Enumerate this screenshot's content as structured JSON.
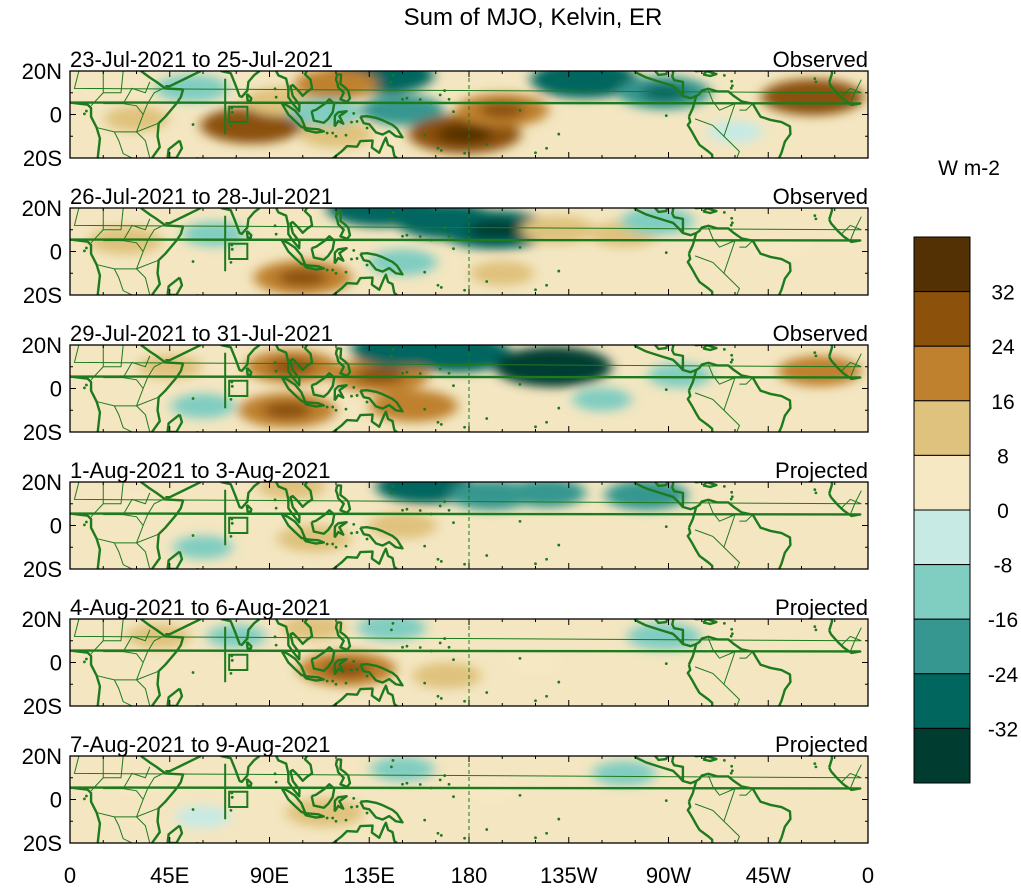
{
  "chart_data": {
    "type": "heatmap",
    "title": "Sum of MJO, Kelvin, ER",
    "colorbar": {
      "unit": "W m-2",
      "tick_labels": [
        "32",
        "24",
        "16",
        "8",
        "0",
        "-8",
        "-16",
        "-24",
        "-32"
      ],
      "levels": [
        40,
        32,
        24,
        16,
        8,
        0,
        -8,
        -16,
        -24,
        -32,
        -40
      ],
      "colors": [
        "#543005",
        "#8c510a",
        "#bf812d",
        "#dfc27d",
        "#f6e8c3",
        "#c7eae5",
        "#80cdc1",
        "#35978f",
        "#01665e",
        "#003c30"
      ]
    },
    "x_axis": {
      "tick_labels": [
        "0",
        "45E",
        "90E",
        "135E",
        "180",
        "135W",
        "90W",
        "45W",
        "0"
      ],
      "range_degrees_east": [
        0,
        360
      ]
    },
    "y_axis": {
      "tick_labels": [
        "20N",
        "0",
        "20S"
      ],
      "range_degrees": [
        -20,
        20
      ]
    },
    "panels": [
      {
        "period": "23-Jul-2021 to 25-Jul-2021",
        "status": "Observed",
        "anomalies": [
          {
            "lon": 82,
            "lat": -5,
            "value": 26
          },
          {
            "lon": 96,
            "lat": 6,
            "value": 16
          },
          {
            "lon": 120,
            "lat": -9,
            "value": 14
          },
          {
            "lon": 140,
            "lat": 18,
            "value": -28
          },
          {
            "lon": 120,
            "lat": 14,
            "value": 18
          },
          {
            "lon": 115,
            "lat": 1,
            "value": -14
          },
          {
            "lon": 150,
            "lat": 2,
            "value": -18
          },
          {
            "lon": 178,
            "lat": -9,
            "value": 30
          },
          {
            "lon": 195,
            "lat": 2,
            "value": 22
          },
          {
            "lon": 232,
            "lat": 16,
            "value": -28
          },
          {
            "lon": 268,
            "lat": 10,
            "value": -22
          },
          {
            "lon": 335,
            "lat": 8,
            "value": 26
          },
          {
            "lon": 30,
            "lat": -2,
            "value": 10
          },
          {
            "lon": 55,
            "lat": 12,
            "value": -14
          },
          {
            "lon": 300,
            "lat": -8,
            "value": -6
          }
        ]
      },
      {
        "period": "26-Jul-2021 to 28-Jul-2021",
        "status": "Observed",
        "anomalies": [
          {
            "lon": 105,
            "lat": -12,
            "value": 24
          },
          {
            "lon": 140,
            "lat": 20,
            "value": -28
          },
          {
            "lon": 170,
            "lat": 14,
            "value": -26
          },
          {
            "lon": 192,
            "lat": 10,
            "value": -30
          },
          {
            "lon": 220,
            "lat": 10,
            "value": 14
          },
          {
            "lon": 250,
            "lat": 8,
            "value": 12
          },
          {
            "lon": 265,
            "lat": 14,
            "value": -14
          },
          {
            "lon": 65,
            "lat": 8,
            "value": -10
          },
          {
            "lon": 25,
            "lat": 5,
            "value": 14
          },
          {
            "lon": 150,
            "lat": -5,
            "value": -12
          },
          {
            "lon": 195,
            "lat": -10,
            "value": 10
          },
          {
            "lon": 320,
            "lat": 2,
            "value": 8
          }
        ]
      },
      {
        "period": "29-Jul-2021 to 31-Jul-2021",
        "status": "Observed",
        "anomalies": [
          {
            "lon": 100,
            "lat": 10,
            "value": 22
          },
          {
            "lon": 98,
            "lat": -10,
            "value": 24
          },
          {
            "lon": 140,
            "lat": 6,
            "value": 24
          },
          {
            "lon": 155,
            "lat": -8,
            "value": 20
          },
          {
            "lon": 150,
            "lat": 18,
            "value": -26
          },
          {
            "lon": 175,
            "lat": 16,
            "value": -28
          },
          {
            "lon": 218,
            "lat": 10,
            "value": -32
          },
          {
            "lon": 60,
            "lat": -8,
            "value": -10
          },
          {
            "lon": 45,
            "lat": 10,
            "value": 10
          },
          {
            "lon": 275,
            "lat": 6,
            "value": -10
          },
          {
            "lon": 338,
            "lat": 8,
            "value": 18
          },
          {
            "lon": 240,
            "lat": -5,
            "value": -8
          }
        ]
      },
      {
        "period": "1-Aug-2021 to 3-Aug-2021",
        "status": "Projected",
        "anomalies": [
          {
            "lon": 160,
            "lat": 18,
            "value": -24
          },
          {
            "lon": 190,
            "lat": 14,
            "value": -18
          },
          {
            "lon": 215,
            "lat": 15,
            "value": -16
          },
          {
            "lon": 260,
            "lat": 14,
            "value": -18
          },
          {
            "lon": 110,
            "lat": -6,
            "value": 14
          },
          {
            "lon": 100,
            "lat": 18,
            "value": 12
          },
          {
            "lon": 150,
            "lat": 0,
            "value": 12
          },
          {
            "lon": 60,
            "lat": -10,
            "value": -8
          },
          {
            "lon": 30,
            "lat": 10,
            "value": 6
          }
        ]
      },
      {
        "period": "4-Aug-2021 to 6-Aug-2021",
        "status": "Projected",
        "anomalies": [
          {
            "lon": 125,
            "lat": -3,
            "value": 24
          },
          {
            "lon": 110,
            "lat": 16,
            "value": 10
          },
          {
            "lon": 170,
            "lat": -6,
            "value": 12
          },
          {
            "lon": 145,
            "lat": 16,
            "value": -12
          },
          {
            "lon": 268,
            "lat": 12,
            "value": -14
          },
          {
            "lon": 75,
            "lat": 12,
            "value": -8
          },
          {
            "lon": 40,
            "lat": 12,
            "value": 10
          },
          {
            "lon": 210,
            "lat": 0,
            "value": 6
          }
        ]
      },
      {
        "period": "7-Aug-2021 to 9-Aug-2021",
        "status": "Projected",
        "anomalies": [
          {
            "lon": 115,
            "lat": -6,
            "value": 16
          },
          {
            "lon": 150,
            "lat": 14,
            "value": -10
          },
          {
            "lon": 92,
            "lat": 10,
            "value": 8
          },
          {
            "lon": 250,
            "lat": 12,
            "value": -10
          },
          {
            "lon": 60,
            "lat": -8,
            "value": -6
          },
          {
            "lon": 30,
            "lat": 8,
            "value": 6
          },
          {
            "lon": 190,
            "lat": 4,
            "value": 6
          }
        ]
      }
    ]
  }
}
